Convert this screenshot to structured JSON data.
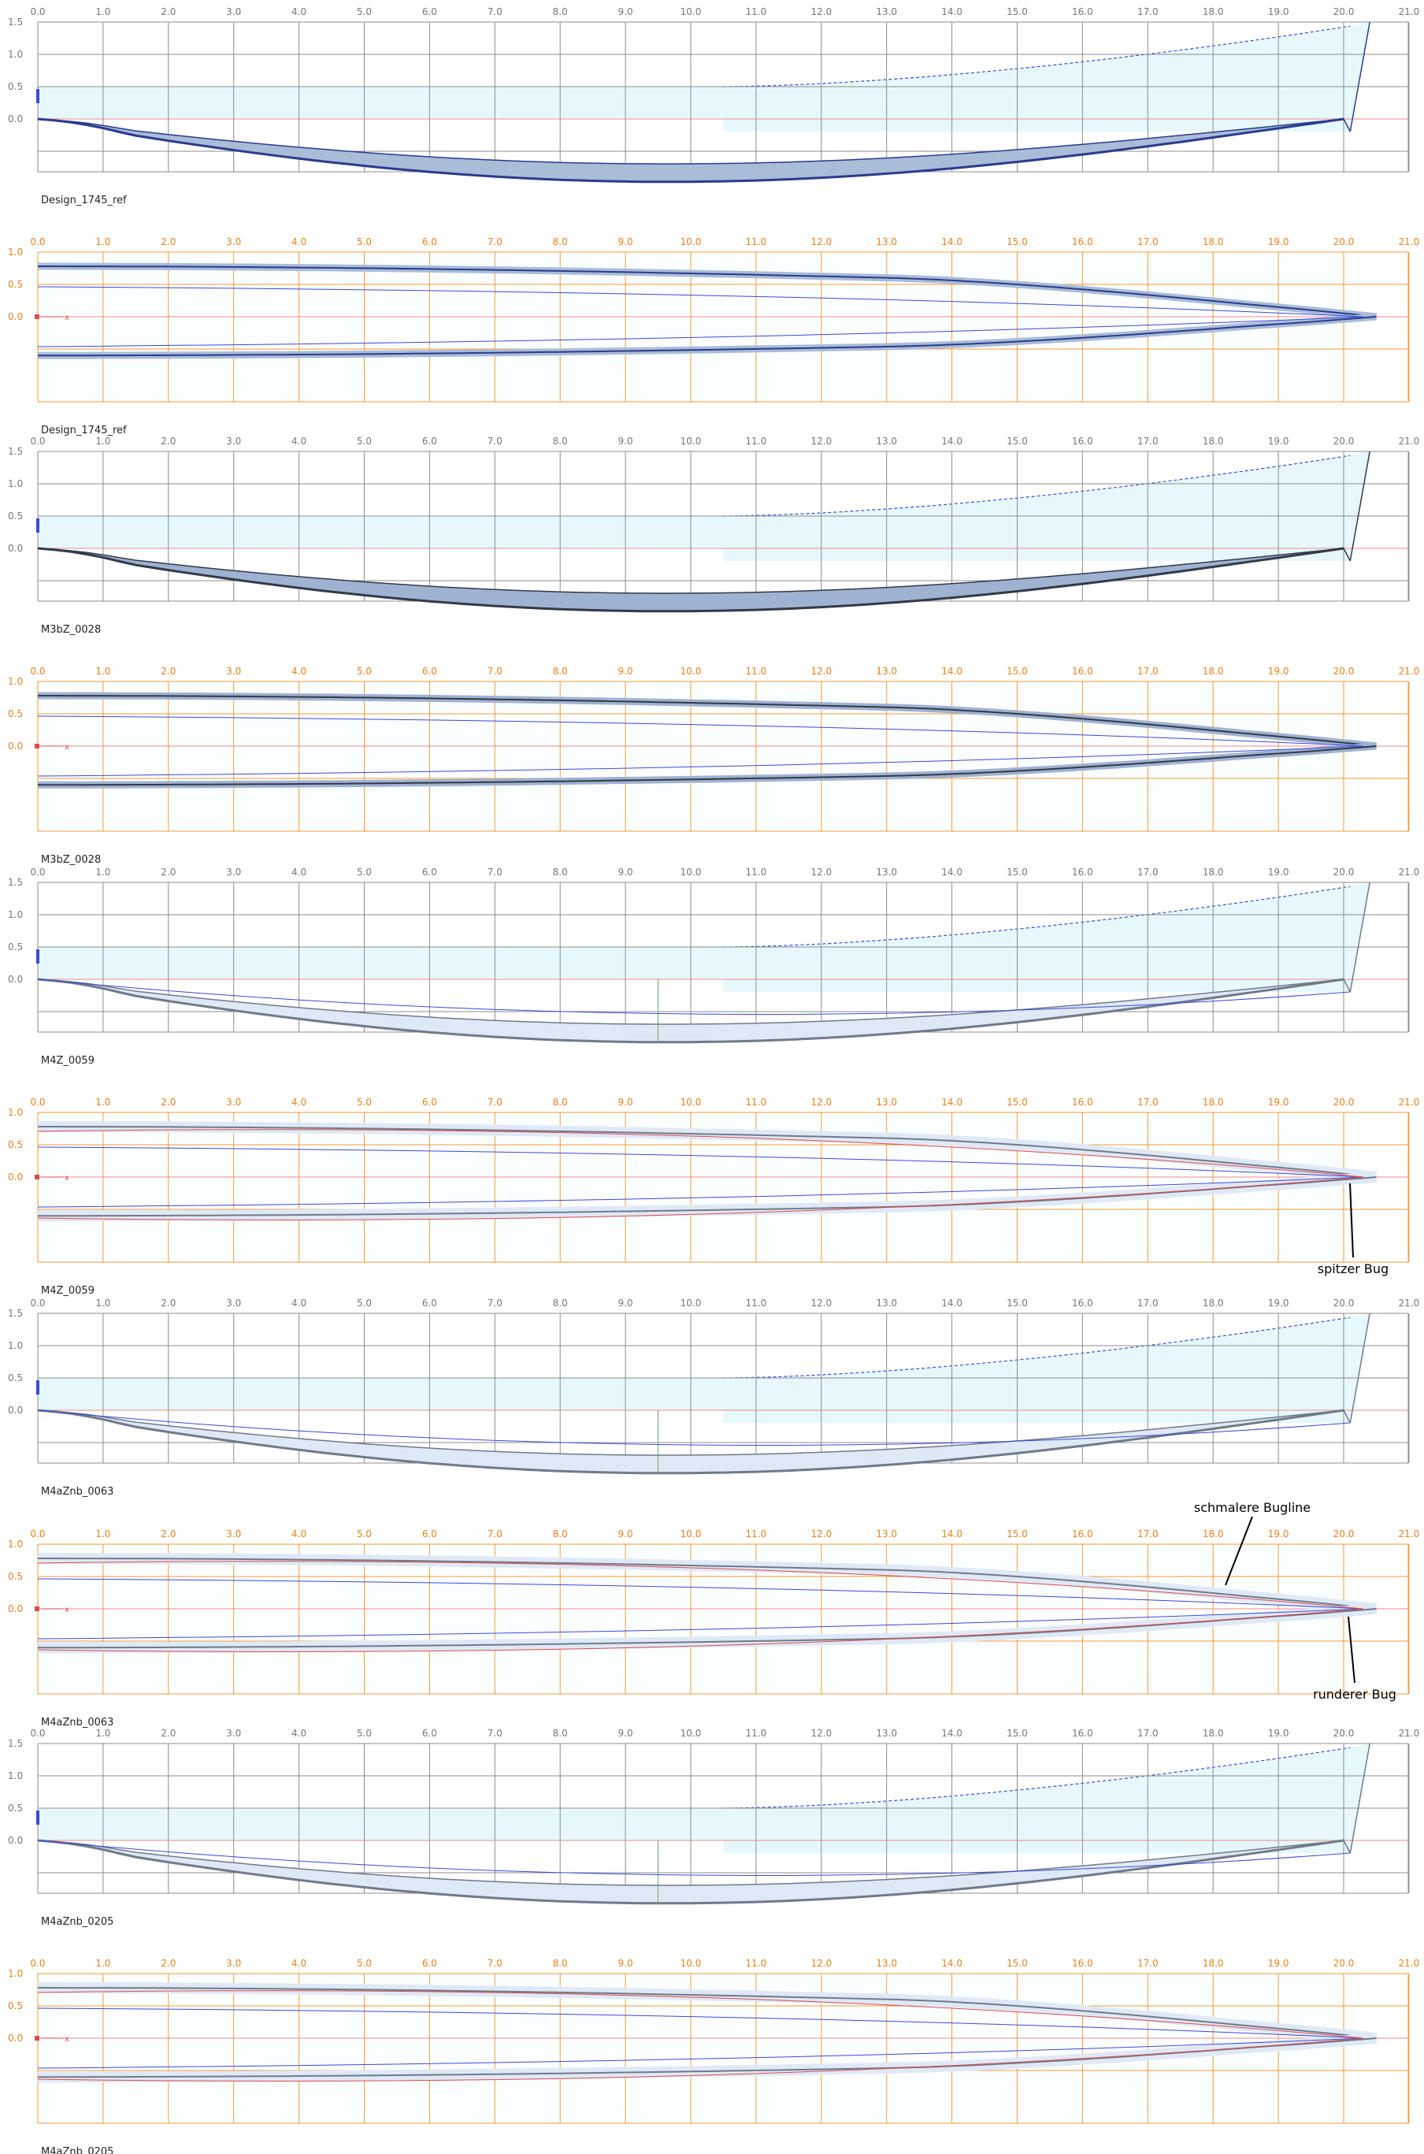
{
  "x_ticks": [
    "0.0",
    "1.0",
    "2.0",
    "3.0",
    "4.0",
    "5.0",
    "6.0",
    "7.0",
    "8.0",
    "9.0",
    "10.0",
    "11.0",
    "12.0",
    "13.0",
    "14.0",
    "15.0",
    "16.0",
    "17.0",
    "18.0",
    "19.0",
    "20.0",
    "21.0"
  ],
  "y_ticks": [
    "1.5",
    "1.0",
    "0.5",
    "0.0"
  ],
  "plan_y_ticks": [
    "1.0",
    "0.5",
    "0.0"
  ],
  "axis_marker": "x",
  "colors": {
    "profile_grid": "#8c8c8c",
    "plan_grid": "#f39a3a",
    "waterline": "#f08a8a",
    "fill_light": "#e6f8fb",
    "hull_fill": "#a9bcd8",
    "hull_edge": "#2c3b8c",
    "blue_line": "#3a4ad8",
    "red_line": "#e04a4a",
    "grey_hull": "#707a8a"
  },
  "panels": [
    {
      "view": "profile",
      "label": "Design_1745_ref",
      "style": "solid"
    },
    {
      "view": "plan",
      "label": "Design_1745_ref",
      "style": "solid"
    },
    {
      "view": "profile",
      "label": "M3bZ_0028",
      "style": "dark"
    },
    {
      "view": "plan",
      "label": "M3bZ_0028",
      "style": "dark"
    },
    {
      "view": "profile",
      "label": "M4Z_0059",
      "style": "light"
    },
    {
      "view": "plan",
      "label": "M4Z_0059",
      "style": "light"
    },
    {
      "view": "profile",
      "label": "M4aZnb_0063",
      "style": "light"
    },
    {
      "view": "plan",
      "label": "M4aZnb_0063",
      "style": "light"
    },
    {
      "view": "profile",
      "label": "M4aZnb_0205",
      "style": "light"
    },
    {
      "view": "plan",
      "label": "M4aZnb_0205",
      "style": "light"
    }
  ],
  "annotations": {
    "spitzer_bug": "spitzer Bug",
    "schmalere_bugline": "schmalere Bugline",
    "runderer_bug": "runderer Bug"
  }
}
